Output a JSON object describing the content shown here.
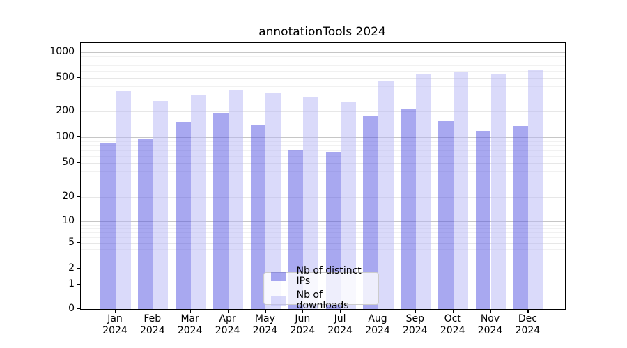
{
  "title": "annotationTools 2024",
  "chart_data": {
    "type": "bar",
    "title": "annotationTools 2024",
    "categories": [
      "Jan 2024",
      "Feb 2024",
      "Mar 2024",
      "Apr 2024",
      "May 2024",
      "Jun 2024",
      "Jul 2024",
      "Aug 2024",
      "Sep 2024",
      "Oct 2024",
      "Nov 2024",
      "Dec 2024"
    ],
    "months": [
      "Jan",
      "Feb",
      "Mar",
      "Apr",
      "May",
      "Jun",
      "Jul",
      "Aug",
      "Sep",
      "Oct",
      "Nov",
      "Dec"
    ],
    "year": "2024",
    "series": [
      {
        "name": "Nb of distinct IPs",
        "color": "rgba(81,81,225,0.5)",
        "values": [
          86,
          95,
          151,
          190,
          140,
          70,
          67,
          176,
          216,
          154,
          118,
          134
        ]
      },
      {
        "name": "Nb of downloads",
        "color": "rgba(181,181,245,0.5)",
        "values": [
          350,
          265,
          310,
          360,
          335,
          300,
          255,
          450,
          560,
          595,
          548,
          620
        ]
      }
    ],
    "yscale": "symlog",
    "y_ticks": [
      0,
      1,
      2,
      5,
      10,
      20,
      50,
      100,
      200,
      500,
      1000
    ],
    "y_minor_ticks": [
      3,
      4,
      6,
      7,
      8,
      9,
      30,
      40,
      60,
      70,
      80,
      90,
      300,
      400,
      600,
      700,
      800,
      900
    ],
    "ylim": [
      0,
      1280
    ],
    "grid": true,
    "legend_position": "lower center"
  },
  "legend": {
    "items": [
      {
        "label": "Nb of distinct IPs",
        "color": "rgba(81,81,225,0.5)"
      },
      {
        "label": "Nb of downloads",
        "color": "rgba(181,181,245,0.5)"
      }
    ]
  },
  "colors": {
    "bar_dark": "rgba(81,81,225,0.5)",
    "bar_light": "rgba(181,181,245,0.5)",
    "grid_major": "#c6c6c6",
    "grid_labeled": "#e7e7e7",
    "grid_minor": "#f1f1f1",
    "axis": "#000000"
  }
}
